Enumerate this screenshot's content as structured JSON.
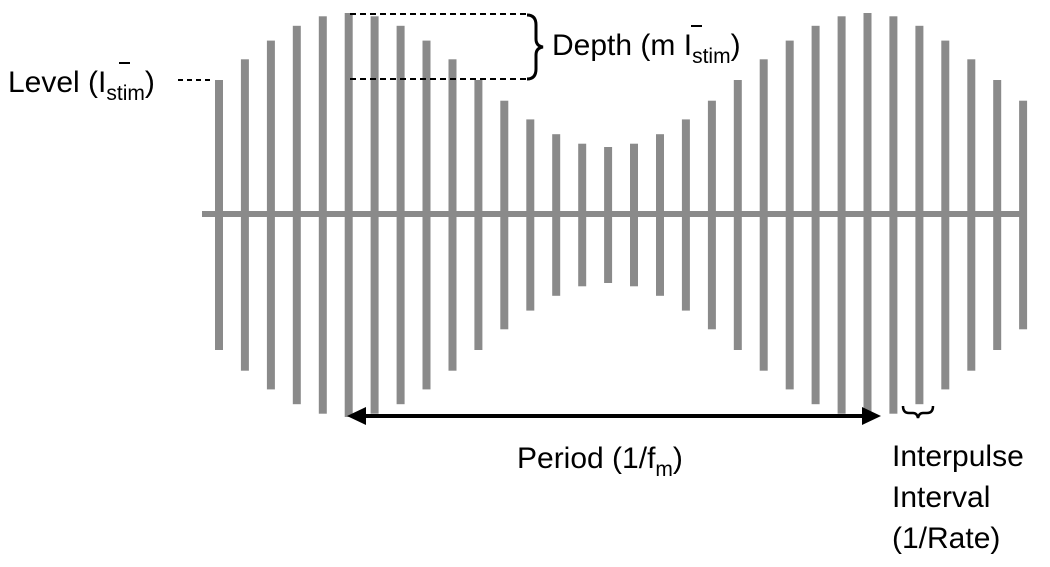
{
  "labels": {
    "level": {
      "prefix": "Level (",
      "symbol": "I",
      "subscript": "stim",
      "suffix": ")"
    },
    "depth": {
      "prefix": "Depth (m ",
      "symbol": "I",
      "subscript": "stim",
      "suffix": ")"
    },
    "period": {
      "prefix": "Period (1/f",
      "subscript": "m",
      "suffix": ")"
    },
    "interpulse": {
      "line1": "Interpulse",
      "line2": "Interval",
      "line3": "(1/Rate)"
    }
  },
  "colors": {
    "pulse": "#8a8a8a",
    "annotation": "#000000"
  },
  "pulse_train": {
    "pulse_count": 32,
    "modulation_depth": 0.5
  }
}
